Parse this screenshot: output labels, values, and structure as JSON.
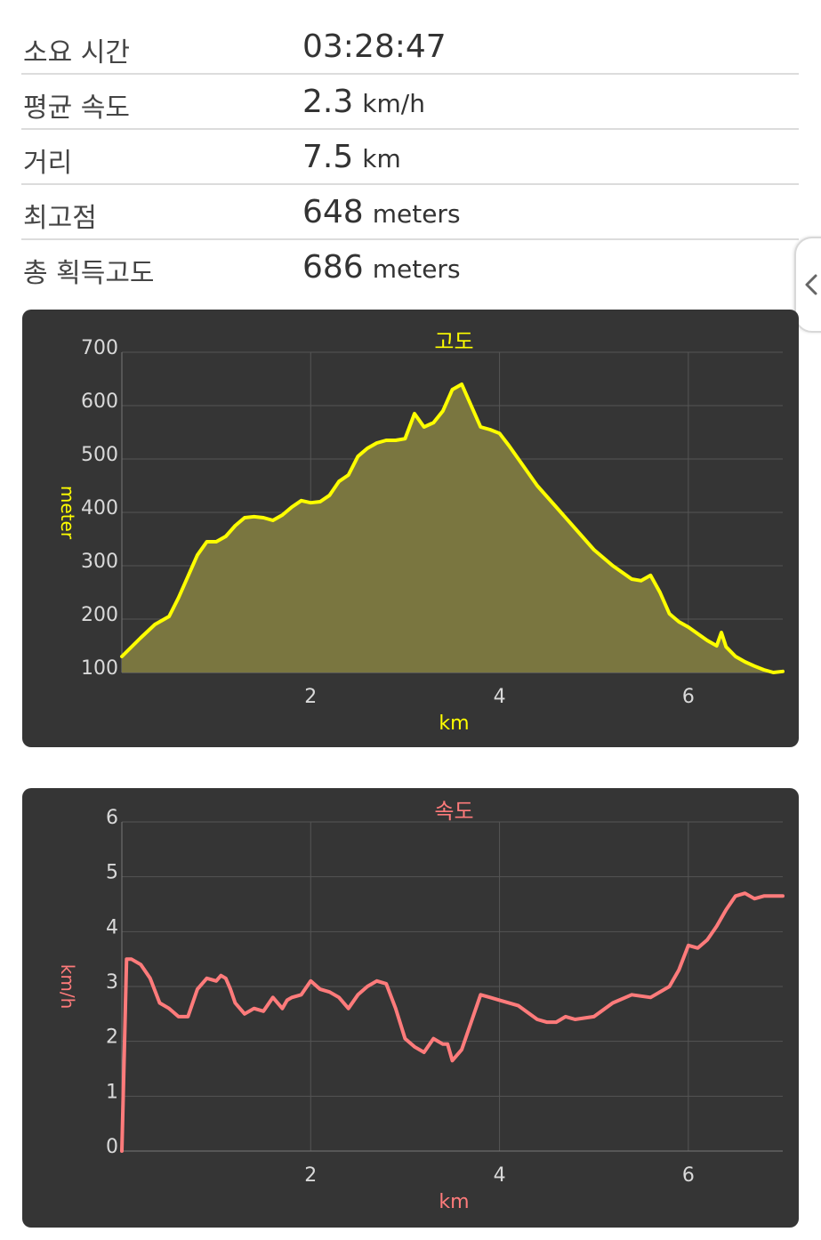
{
  "stats": [
    {
      "label": "소요 시간",
      "value": "03:28:47",
      "unit": ""
    },
    {
      "label": "평균 속도",
      "value": "2.3",
      "unit": "km/h"
    },
    {
      "label": "거리",
      "value": "7.5",
      "unit": "km"
    },
    {
      "label": "최고점",
      "value": "648",
      "unit": "meters"
    },
    {
      "label": "총 획득고도",
      "value": "686",
      "unit": "meters"
    }
  ],
  "side_handle": {
    "icon": "chevron-left-icon"
  },
  "chart_data": [
    {
      "type": "area",
      "title": "고도",
      "xlabel": "km",
      "ylabel": "meter",
      "color": "#ffff00",
      "fill": "#7a7640",
      "xlim": [
        0,
        7
      ],
      "ylim": [
        100,
        700
      ],
      "x_ticks": [
        "2",
        "4",
        "6"
      ],
      "y_ticks": [
        "100",
        "200",
        "300",
        "400",
        "500",
        "600",
        "700"
      ],
      "grid": true,
      "x": [
        0,
        0.2,
        0.35,
        0.5,
        0.6,
        0.7,
        0.8,
        0.9,
        1.0,
        1.1,
        1.2,
        1.3,
        1.4,
        1.5,
        1.6,
        1.7,
        1.8,
        1.9,
        2.0,
        2.1,
        2.2,
        2.3,
        2.4,
        2.5,
        2.6,
        2.7,
        2.8,
        2.9,
        3.0,
        3.1,
        3.2,
        3.3,
        3.4,
        3.5,
        3.6,
        3.7,
        3.8,
        3.9,
        4.0,
        4.1,
        4.2,
        4.4,
        4.6,
        4.8,
        5.0,
        5.2,
        5.4,
        5.5,
        5.6,
        5.7,
        5.8,
        5.9,
        6.0,
        6.2,
        6.3,
        6.35,
        6.4,
        6.5,
        6.6,
        6.7,
        6.8,
        6.9,
        7.0
      ],
      "y": [
        130,
        165,
        190,
        205,
        240,
        280,
        320,
        345,
        345,
        355,
        375,
        390,
        392,
        390,
        385,
        395,
        410,
        422,
        418,
        420,
        432,
        458,
        470,
        505,
        520,
        530,
        535,
        535,
        538,
        585,
        560,
        568,
        590,
        630,
        640,
        600,
        560,
        555,
        548,
        525,
        500,
        450,
        410,
        370,
        330,
        300,
        275,
        272,
        282,
        250,
        210,
        195,
        185,
        160,
        150,
        175,
        148,
        130,
        120,
        112,
        105,
        100,
        102
      ]
    },
    {
      "type": "line",
      "title": "속도",
      "xlabel": "km",
      "ylabel": "km/h",
      "color": "#ff7b7b",
      "xlim": [
        0,
        7
      ],
      "ylim": [
        0,
        6
      ],
      "x_ticks": [
        "2",
        "4",
        "6"
      ],
      "y_ticks": [
        "0",
        "1",
        "2",
        "3",
        "4",
        "5",
        "6"
      ],
      "grid": true,
      "x": [
        0,
        0.05,
        0.1,
        0.2,
        0.3,
        0.4,
        0.5,
        0.6,
        0.7,
        0.8,
        0.9,
        1.0,
        1.05,
        1.1,
        1.15,
        1.2,
        1.3,
        1.4,
        1.5,
        1.6,
        1.7,
        1.75,
        1.8,
        1.9,
        2.0,
        2.1,
        2.2,
        2.3,
        2.4,
        2.5,
        2.6,
        2.7,
        2.8,
        2.9,
        3.0,
        3.1,
        3.2,
        3.3,
        3.4,
        3.45,
        3.5,
        3.6,
        3.7,
        3.8,
        3.9,
        4.0,
        4.2,
        4.4,
        4.5,
        4.6,
        4.7,
        4.8,
        5.0,
        5.2,
        5.4,
        5.6,
        5.8,
        5.9,
        6.0,
        6.1,
        6.2,
        6.3,
        6.4,
        6.5,
        6.6,
        6.7,
        6.8,
        6.9,
        7.0
      ],
      "y": [
        0,
        3.5,
        3.5,
        3.4,
        3.15,
        2.7,
        2.6,
        2.45,
        2.45,
        2.95,
        3.15,
        3.1,
        3.2,
        3.15,
        2.95,
        2.7,
        2.5,
        2.6,
        2.55,
        2.8,
        2.6,
        2.75,
        2.8,
        2.85,
        3.1,
        2.95,
        2.9,
        2.8,
        2.6,
        2.85,
        3.0,
        3.1,
        3.05,
        2.6,
        2.05,
        1.9,
        1.8,
        2.05,
        1.95,
        1.95,
        1.65,
        1.85,
        2.35,
        2.85,
        2.8,
        2.75,
        2.65,
        2.4,
        2.35,
        2.35,
        2.45,
        2.4,
        2.45,
        2.7,
        2.85,
        2.8,
        3.0,
        3.3,
        3.75,
        3.7,
        3.85,
        4.1,
        4.4,
        4.65,
        4.7,
        4.6,
        4.65,
        4.65,
        4.65
      ]
    }
  ]
}
